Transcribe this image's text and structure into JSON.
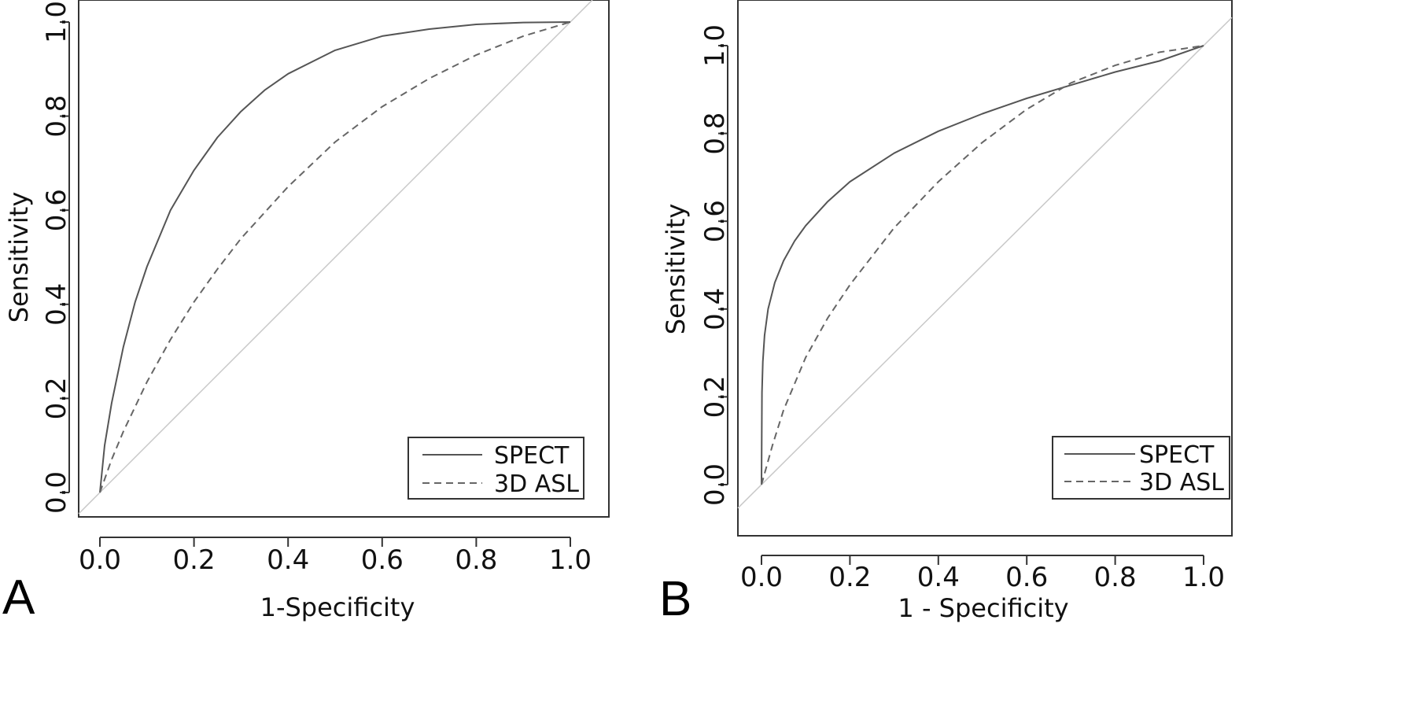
{
  "figure": {
    "panels": [
      {
        "letter": "A",
        "xlabel": "1-Specificity",
        "ylabel": "Sensitivity"
      },
      {
        "letter": "B",
        "xlabel": "1 - Specificity",
        "ylabel": "Sensitivity"
      }
    ]
  },
  "chart_data": [
    {
      "type": "line",
      "panel": "A",
      "xlabel": "1-Specificity",
      "ylabel": "Sensitivity",
      "xlim": [
        0,
        1
      ],
      "ylim": [
        0,
        1
      ],
      "x_ticks": [
        "0.0",
        "0.2",
        "0.4",
        "0.6",
        "0.8",
        "1.0"
      ],
      "y_ticks": [
        "0.0",
        "0.2",
        "0.4",
        "0.6",
        "0.8",
        "1.0"
      ],
      "legend_position": "bottom-right",
      "reference_line": {
        "style": "diagonal",
        "color": "#c8c8c8"
      },
      "series": [
        {
          "name": "SPECT",
          "style": "solid",
          "color": "#555555",
          "x": [
            0,
            0.01,
            0.025,
            0.05,
            0.075,
            0.1,
            0.15,
            0.2,
            0.25,
            0.3,
            0.35,
            0.4,
            0.5,
            0.6,
            0.7,
            0.8,
            0.9,
            1.0
          ],
          "y": [
            0,
            0.1,
            0.19,
            0.31,
            0.405,
            0.48,
            0.6,
            0.685,
            0.755,
            0.81,
            0.855,
            0.89,
            0.94,
            0.97,
            0.985,
            0.995,
            0.999,
            1.0
          ]
        },
        {
          "name": "3D ASL",
          "style": "dashed",
          "color": "#666666",
          "x": [
            0,
            0.025,
            0.05,
            0.1,
            0.15,
            0.2,
            0.25,
            0.3,
            0.4,
            0.5,
            0.6,
            0.7,
            0.8,
            0.9,
            1.0
          ],
          "y": [
            0,
            0.07,
            0.13,
            0.235,
            0.325,
            0.405,
            0.475,
            0.54,
            0.65,
            0.745,
            0.82,
            0.88,
            0.93,
            0.97,
            1.0
          ]
        }
      ]
    },
    {
      "type": "line",
      "panel": "B",
      "xlabel": "1 - Specificity",
      "ylabel": "Sensitivity",
      "xlim": [
        0,
        1
      ],
      "ylim": [
        0,
        1
      ],
      "x_ticks": [
        "0.0",
        "0.2",
        "0.4",
        "0.6",
        "0.8",
        "1.0"
      ],
      "y_ticks": [
        "0.0",
        "0.2",
        "0.4",
        "0.6",
        "0.8",
        "1.0"
      ],
      "legend_position": "bottom-right",
      "reference_line": {
        "style": "diagonal",
        "color": "#c8c8c8"
      },
      "series": [
        {
          "name": "SPECT",
          "style": "solid",
          "color": "#555555",
          "x": [
            0,
            0.001,
            0.003,
            0.007,
            0.015,
            0.03,
            0.05,
            0.075,
            0.1,
            0.15,
            0.2,
            0.3,
            0.4,
            0.5,
            0.6,
            0.7,
            0.8,
            0.9,
            1.0
          ],
          "y": [
            0,
            0.21,
            0.28,
            0.34,
            0.4,
            0.46,
            0.51,
            0.555,
            0.59,
            0.645,
            0.69,
            0.755,
            0.805,
            0.845,
            0.88,
            0.91,
            0.94,
            0.965,
            1.0
          ]
        },
        {
          "name": "3D ASL",
          "style": "dashed",
          "color": "#666666",
          "x": [
            0,
            0.025,
            0.05,
            0.1,
            0.15,
            0.2,
            0.3,
            0.4,
            0.5,
            0.6,
            0.7,
            0.8,
            0.9,
            1.0
          ],
          "y": [
            0,
            0.09,
            0.17,
            0.29,
            0.38,
            0.455,
            0.585,
            0.69,
            0.78,
            0.855,
            0.915,
            0.955,
            0.985,
            1.0
          ]
        }
      ]
    }
  ]
}
